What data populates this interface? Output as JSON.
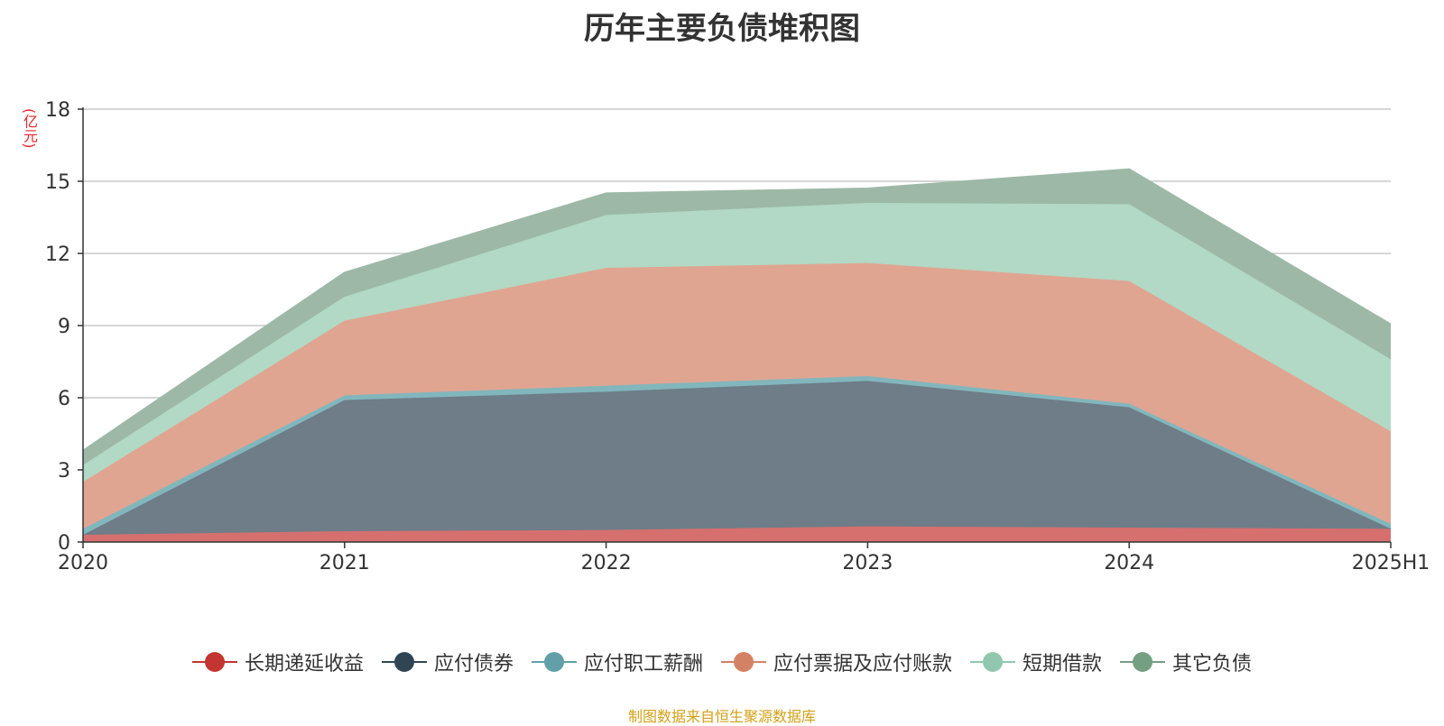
{
  "chart_data": {
    "type": "area",
    "stacked": true,
    "title": "历年主要负债堆积图",
    "unit": "(亿元)",
    "xlabel": "",
    "ylabel": "",
    "ylim": [
      0,
      18
    ],
    "yticks": [
      0,
      3,
      6,
      9,
      12,
      15,
      18
    ],
    "grid": true,
    "legend_position": "bottom",
    "x": [
      "2020",
      "2021",
      "2022",
      "2023",
      "2024",
      "2025H1"
    ],
    "series": [
      {
        "name": "长期递延收益",
        "color": "#c23531",
        "fill": "#d5706e",
        "values": [
          0.3,
          0.45,
          0.5,
          0.65,
          0.6,
          0.55
        ]
      },
      {
        "name": "应付债券",
        "color": "#2f4554",
        "fill": "#6e7d88",
        "values": [
          0.0,
          5.45,
          5.75,
          6.05,
          5.0,
          0.0
        ]
      },
      {
        "name": "应付职工薪酬",
        "color": "#61a0a8",
        "fill": "#82b6bd",
        "values": [
          0.25,
          0.2,
          0.25,
          0.2,
          0.15,
          0.2
        ]
      },
      {
        "name": "应付票据及应付账款",
        "color": "#d48265",
        "fill": "#e0a591",
        "values": [
          1.95,
          3.1,
          4.9,
          4.7,
          5.1,
          3.85
        ]
      },
      {
        "name": "短期借款",
        "color": "#91c7ae",
        "fill": "#b1d9c5",
        "values": [
          0.7,
          1.0,
          2.2,
          2.5,
          3.2,
          3.0
        ]
      },
      {
        "name": "其它负债",
        "color": "#749f83",
        "fill": "#9db8a7",
        "values": [
          0.6,
          1.0,
          0.9,
          0.6,
          1.45,
          1.45
        ]
      }
    ]
  },
  "source": "制图数据来自恒生聚源数据库"
}
